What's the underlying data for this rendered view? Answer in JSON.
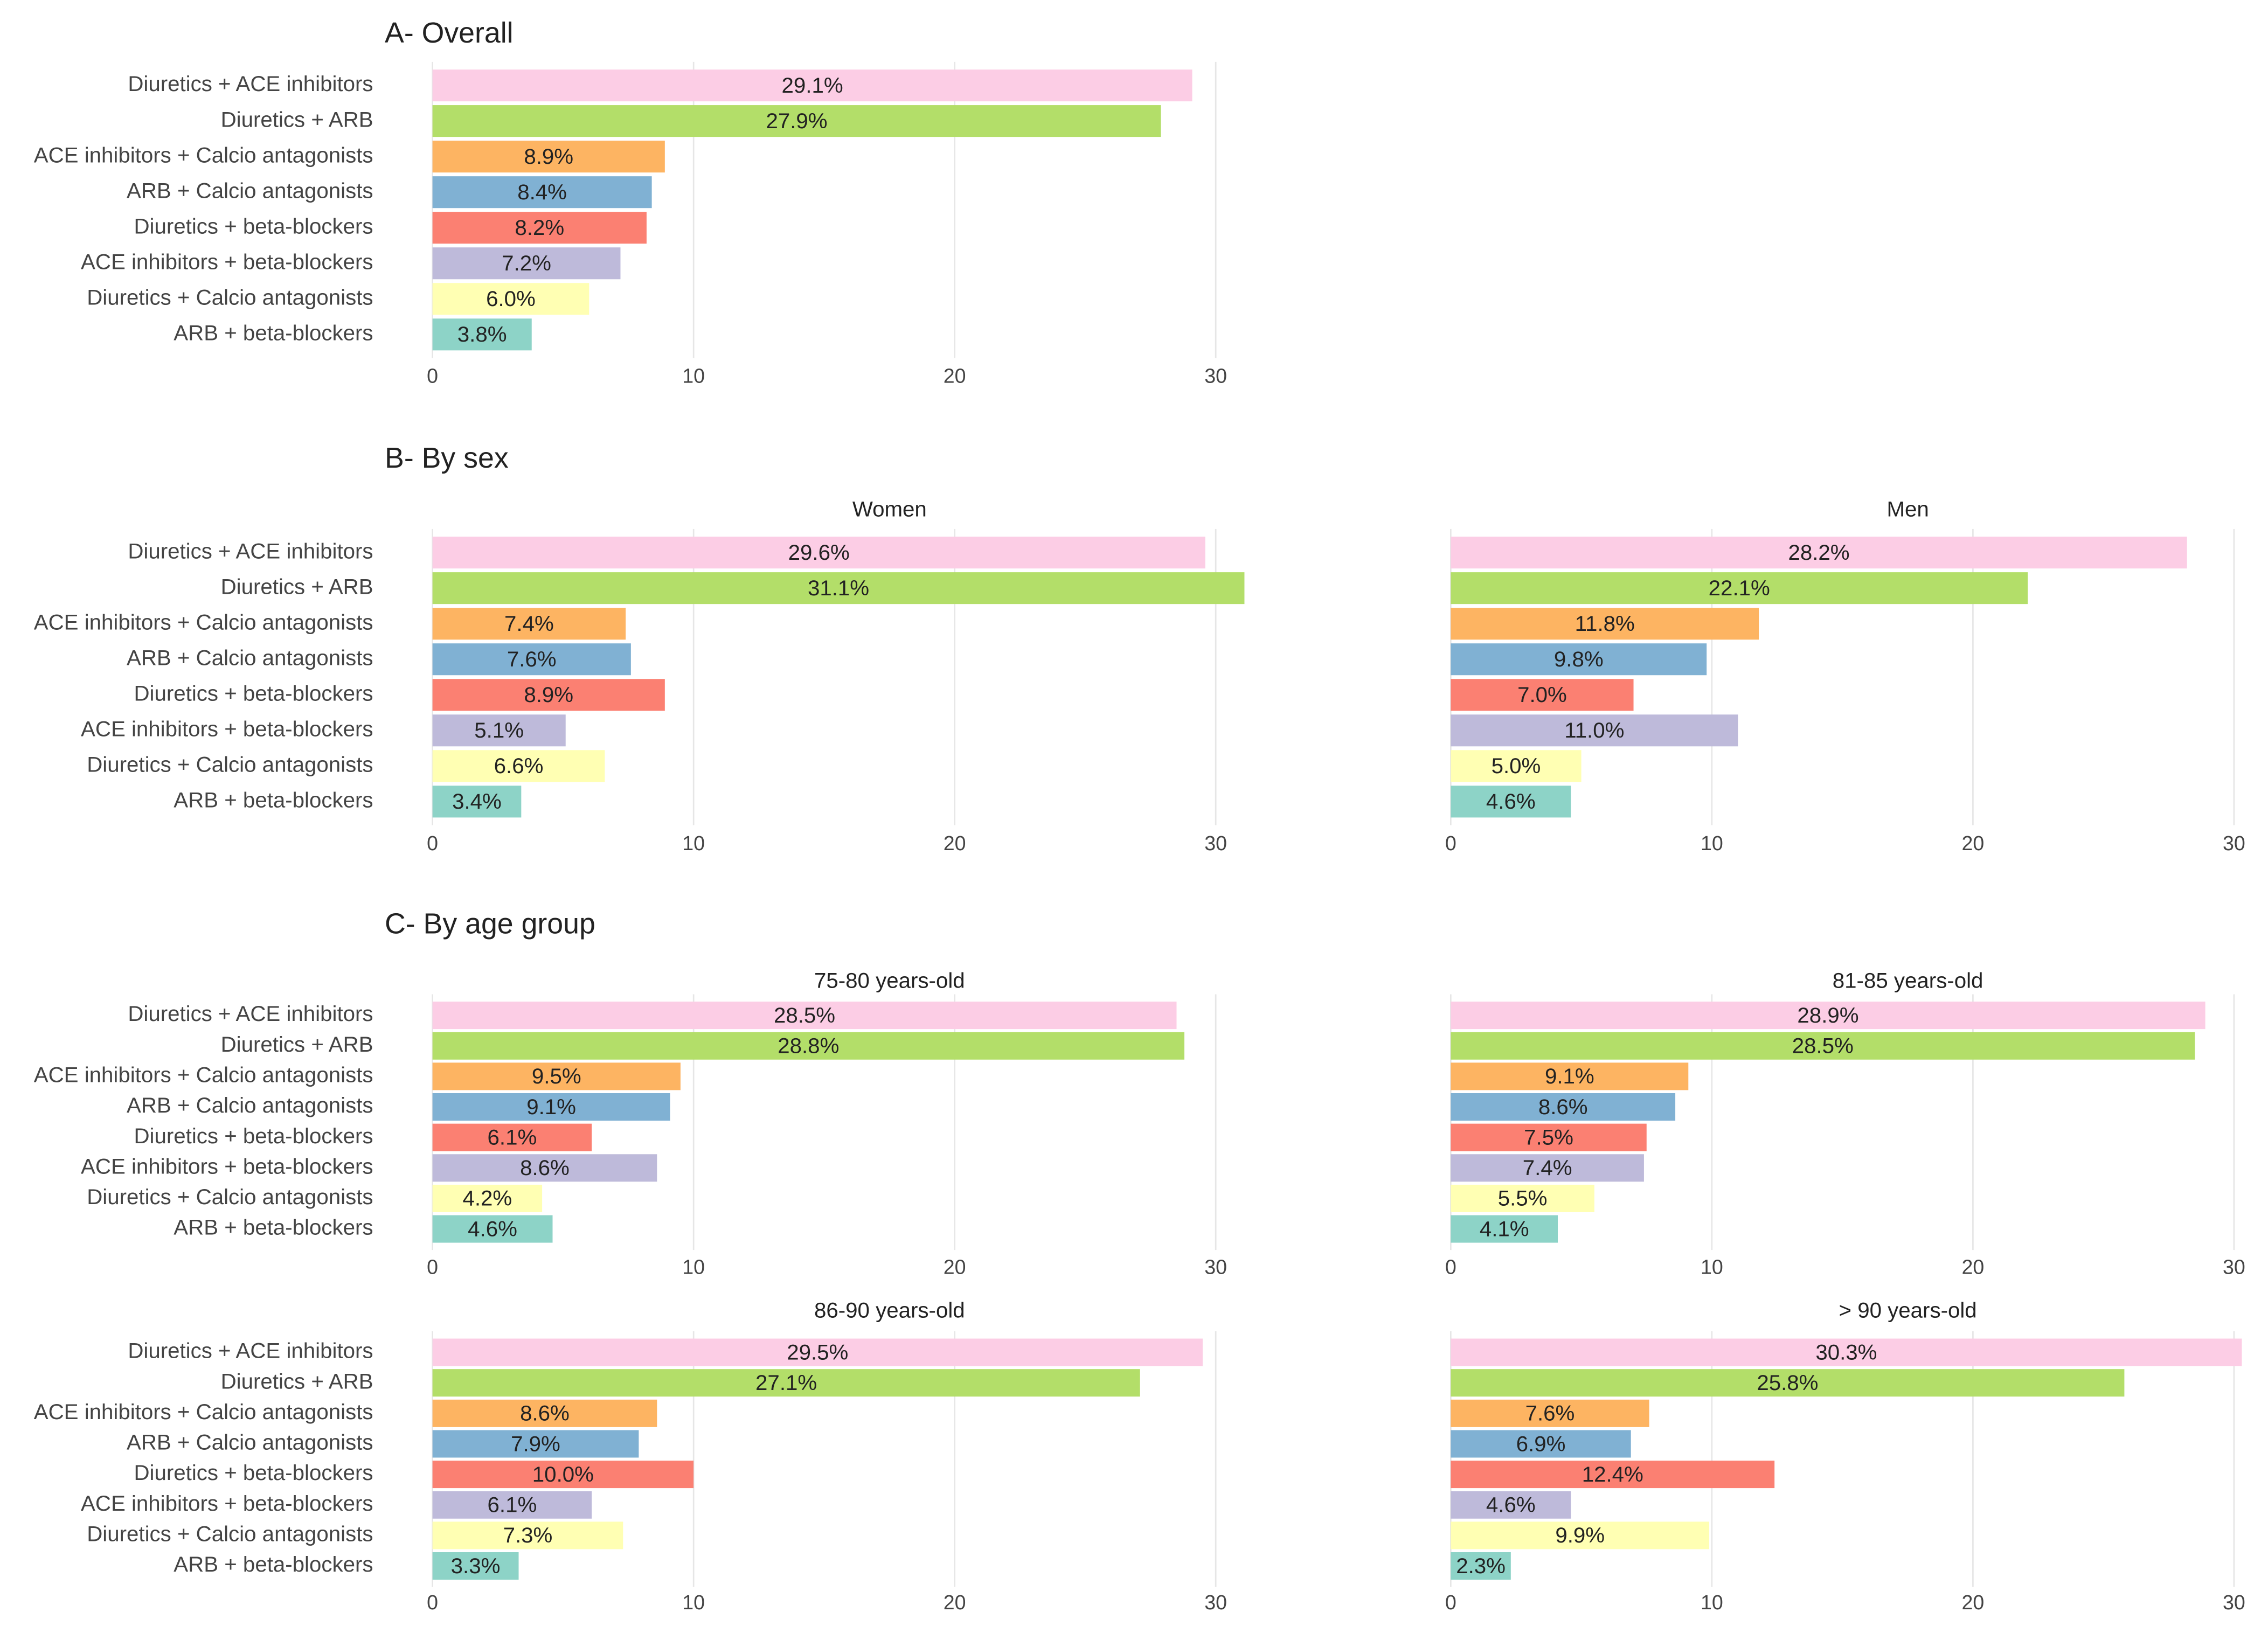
{
  "sections": [
    "A- Overall",
    "B- By sex",
    "C- By age group"
  ],
  "chart_data": [
    {
      "type": "bar",
      "orientation": "horizontal",
      "categories": [
        "Diuretics + ACE inhibitors",
        "Diuretics + ARB",
        "ACE inhibitors + Calcio antagonists",
        "ARB + Calcio antagonists",
        "Diuretics + beta-blockers",
        "ACE inhibitors + beta-blockers",
        "Diuretics + Calcio antagonists",
        "ARB + beta-blockers"
      ],
      "values": [
        29.1,
        27.9,
        8.9,
        8.4,
        8.2,
        7.2,
        6.0,
        3.8
      ],
      "value_labels": [
        "29.1%",
        "27.9%",
        "8.9%",
        "8.4%",
        "8.2%",
        "7.2%",
        "6.0%",
        "3.8%"
      ],
      "colors": [
        "#fccde5",
        "#b3de69",
        "#fdb462",
        "#80b1d3",
        "#fb8072",
        "#bebada",
        "#ffffb3",
        "#8dd3c7"
      ],
      "xlim": [
        0,
        31
      ],
      "xticks": [
        0,
        10,
        20,
        30
      ],
      "grid": true
    },
    {
      "type": "bar",
      "orientation": "horizontal",
      "title": "Women",
      "categories": [
        "Diuretics + ACE inhibitors",
        "Diuretics + ARB",
        "ACE inhibitors + Calcio antagonists",
        "ARB + Calcio antagonists",
        "Diuretics + beta-blockers",
        "ACE inhibitors + beta-blockers",
        "Diuretics + Calcio antagonists",
        "ARB + beta-blockers"
      ],
      "values": [
        29.6,
        31.1,
        7.4,
        7.6,
        8.9,
        5.1,
        6.6,
        3.4
      ],
      "value_labels": [
        "29.6%",
        "31.1%",
        "7.4%",
        "7.6%",
        "8.9%",
        "5.1%",
        "6.6%",
        "3.4%"
      ],
      "colors": [
        "#fccde5",
        "#b3de69",
        "#fdb462",
        "#80b1d3",
        "#fb8072",
        "#bebada",
        "#ffffb3",
        "#8dd3c7"
      ],
      "xlim": [
        0,
        31
      ],
      "xticks": [
        0,
        10,
        20,
        30
      ],
      "grid": true
    },
    {
      "type": "bar",
      "orientation": "horizontal",
      "title": "Men",
      "categories": [
        null,
        null,
        null,
        null,
        null,
        null,
        null,
        null
      ],
      "values": [
        28.2,
        22.1,
        11.8,
        9.8,
        7.0,
        11.0,
        5.0,
        4.6
      ],
      "value_labels": [
        "28.2%",
        "22.1%",
        "11.8%",
        "9.8%",
        "7.0%",
        "11.0%",
        "5.0%",
        "4.6%"
      ],
      "colors": [
        "#fccde5",
        "#b3de69",
        "#fdb462",
        "#80b1d3",
        "#fb8072",
        "#bebada",
        "#ffffb3",
        "#8dd3c7"
      ],
      "xlim": [
        0,
        31
      ],
      "xticks": [
        0,
        10,
        20,
        30
      ],
      "grid": true
    },
    {
      "type": "bar",
      "orientation": "horizontal",
      "title": "75-80 years-old",
      "categories": [
        "Diuretics + ACE inhibitors",
        "Diuretics + ARB",
        "ACE inhibitors + Calcio antagonists",
        "ARB + Calcio antagonists",
        "Diuretics + beta-blockers",
        "ACE inhibitors + beta-blockers",
        "Diuretics + Calcio antagonists",
        "ARB + beta-blockers"
      ],
      "values": [
        28.5,
        28.8,
        9.5,
        9.1,
        6.1,
        8.6,
        4.2,
        4.6
      ],
      "value_labels": [
        "28.5%",
        "28.8%",
        "9.5%",
        "9.1%",
        "6.1%",
        "8.6%",
        "4.2%",
        "4.6%"
      ],
      "colors": [
        "#fccde5",
        "#b3de69",
        "#fdb462",
        "#80b1d3",
        "#fb8072",
        "#bebada",
        "#ffffb3",
        "#8dd3c7"
      ],
      "xlim": [
        0,
        31
      ],
      "xticks": [
        0,
        10,
        20,
        30
      ],
      "grid": true
    },
    {
      "type": "bar",
      "orientation": "horizontal",
      "title": "81-85 years-old",
      "categories": [
        null,
        null,
        null,
        null,
        null,
        null,
        null,
        null
      ],
      "values": [
        28.9,
        28.5,
        9.1,
        8.6,
        7.5,
        7.4,
        5.5,
        4.1
      ],
      "value_labels": [
        "28.9%",
        "28.5%",
        "9.1%",
        "8.6%",
        "7.5%",
        "7.4%",
        "5.5%",
        "4.1%"
      ],
      "colors": [
        "#fccde5",
        "#b3de69",
        "#fdb462",
        "#80b1d3",
        "#fb8072",
        "#bebada",
        "#ffffb3",
        "#8dd3c7"
      ],
      "xlim": [
        0,
        31
      ],
      "xticks": [
        0,
        10,
        20,
        30
      ],
      "grid": true
    },
    {
      "type": "bar",
      "orientation": "horizontal",
      "title": "86-90 years-old",
      "categories": [
        "Diuretics + ACE inhibitors",
        "Diuretics + ARB",
        "ACE inhibitors + Calcio antagonists",
        "ARB + Calcio antagonists",
        "Diuretics + beta-blockers",
        "ACE inhibitors + beta-blockers",
        "Diuretics + Calcio antagonists",
        "ARB + beta-blockers"
      ],
      "values": [
        29.5,
        27.1,
        8.6,
        7.9,
        10.0,
        6.1,
        7.3,
        3.3
      ],
      "value_labels": [
        "29.5%",
        "27.1%",
        "8.6%",
        "7.9%",
        "10.0%",
        "6.1%",
        "7.3%",
        "3.3%"
      ],
      "colors": [
        "#fccde5",
        "#b3de69",
        "#fdb462",
        "#80b1d3",
        "#fb8072",
        "#bebada",
        "#ffffb3",
        "#8dd3c7"
      ],
      "xlim": [
        0,
        31
      ],
      "xticks": [
        0,
        10,
        20,
        30
      ],
      "grid": true
    },
    {
      "type": "bar",
      "orientation": "horizontal",
      "title": "> 90 years-old",
      "categories": [
        null,
        null,
        null,
        null,
        null,
        null,
        null,
        null
      ],
      "values": [
        30.3,
        25.8,
        7.6,
        6.9,
        12.4,
        4.6,
        9.9,
        2.3
      ],
      "value_labels": [
        "30.3%",
        "25.8%",
        "7.6%",
        "6.9%",
        "12.4%",
        "4.6%",
        "9.9%",
        "2.3%"
      ],
      "colors": [
        "#fccde5",
        "#b3de69",
        "#fdb462",
        "#80b1d3",
        "#fb8072",
        "#bebada",
        "#ffffb3",
        "#8dd3c7"
      ],
      "xlim": [
        0,
        31
      ],
      "xticks": [
        0,
        10,
        20,
        30
      ],
      "grid": true
    }
  ]
}
